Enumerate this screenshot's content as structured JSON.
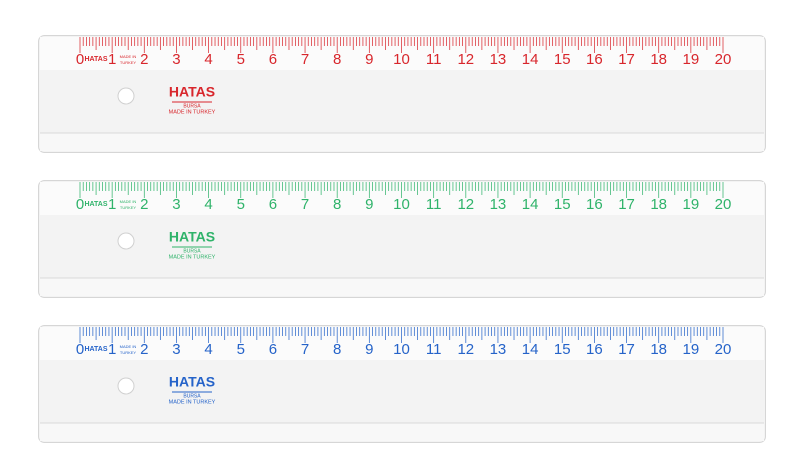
{
  "rulers": [
    {
      "color": "#d8262c",
      "labels": [
        "0",
        "1",
        "2",
        "3",
        "4",
        "5",
        "6",
        "7",
        "8",
        "9",
        "10",
        "11",
        "12",
        "13",
        "14",
        "15",
        "16",
        "17",
        "18",
        "19",
        "20"
      ],
      "small_brand": "HATAS",
      "small_origin_1": "MADE IN",
      "small_origin_2": "TURKEY",
      "brand": "HATAS",
      "city": "BURSA",
      "origin": "MADE IN TURKEY"
    },
    {
      "color": "#2fb36a",
      "labels": [
        "0",
        "1",
        "2",
        "3",
        "4",
        "5",
        "6",
        "7",
        "8",
        "9",
        "10",
        "11",
        "12",
        "13",
        "14",
        "15",
        "16",
        "17",
        "18",
        "19",
        "20"
      ],
      "small_brand": "HATAS",
      "small_origin_1": "MADE IN",
      "small_origin_2": "TURKEY",
      "brand": "HATAS",
      "city": "BURSA",
      "origin": "MADE IN TURKEY"
    },
    {
      "color": "#2563c9",
      "labels": [
        "0",
        "1",
        "2",
        "3",
        "4",
        "5",
        "6",
        "7",
        "8",
        "9",
        "10",
        "11",
        "12",
        "13",
        "14",
        "15",
        "16",
        "17",
        "18",
        "19",
        "20"
      ],
      "small_brand": "HATAS",
      "small_origin_1": "MADE IN",
      "small_origin_2": "TURKEY",
      "brand": "HATAS",
      "city": "BURSA",
      "origin": "MADE IN TURKEY"
    }
  ]
}
